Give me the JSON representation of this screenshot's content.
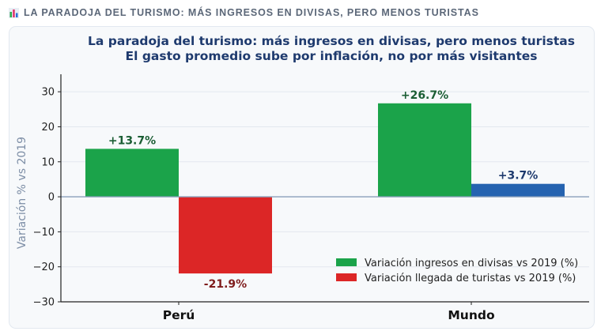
{
  "header": {
    "icon": "bar-chart-icon",
    "title": "LA PARADOJA DEL TURISMO: MÁS INGRESOS EN DIVISAS, PERO MENOS TURISTAS"
  },
  "chart_data": {
    "type": "bar",
    "title": "La paradoja del turismo: más ingresos en divisas, pero menos turistas",
    "subtitle": "El gasto promedio sube por inflación, no por más visitantes",
    "xlabel": "",
    "ylabel": "Variación % vs 2019",
    "ylim": [
      -30,
      35
    ],
    "yticks": [
      30,
      20,
      10,
      0,
      -10,
      -20,
      -30
    ],
    "ytick_labels": [
      "30",
      "20",
      "10",
      "0",
      "−10",
      "−20",
      "−30"
    ],
    "grid": true,
    "categories": [
      "Perú",
      "Mundo"
    ],
    "series": [
      {
        "name": "Variación ingresos en divisas vs 2019 (%)",
        "values": [
          13.7,
          26.7
        ],
        "colors": [
          "#1ba34a",
          "#1ba34a"
        ],
        "labels": [
          "+13.7%",
          "+26.7%"
        ],
        "label_colors": [
          "#1b5e34",
          "#1b5e34"
        ]
      },
      {
        "name": "Variación llegada de turistas vs 2019 (%)",
        "values": [
          -21.9,
          3.7
        ],
        "colors": [
          "#dc2626",
          "#2563b0"
        ],
        "labels": [
          "-21.9%",
          "+3.7%"
        ],
        "label_colors": [
          "#7f1d1d",
          "#1e3a6e"
        ]
      }
    ],
    "legend": {
      "placement": "lower-right",
      "entries": [
        {
          "label": "Variación ingresos en divisas vs 2019 (%)",
          "color": "#1ba34a"
        },
        {
          "label": "Variación llegada de turistas vs 2019 (%)",
          "color": "#dc2626"
        }
      ]
    }
  }
}
